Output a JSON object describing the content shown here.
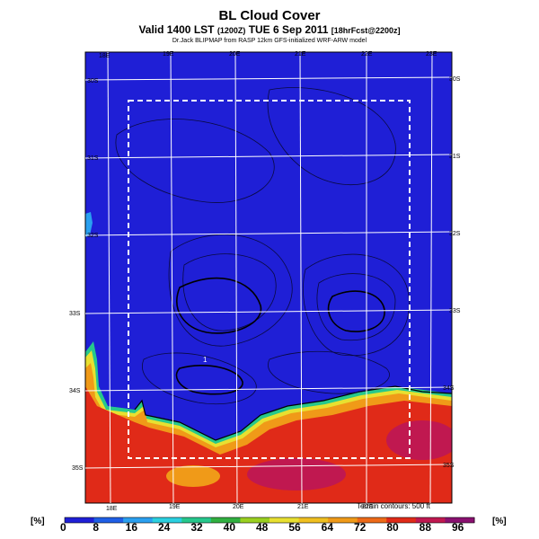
{
  "header": {
    "title": "BL Cloud Cover",
    "subtitle_main": "Valid 1400 LST",
    "subtitle_utc": "(1200Z)",
    "subtitle_date": "TUE 6 Sep 2011",
    "subtitle_fcst": "[18hrFcst@2200z]",
    "credit": "Dr.Jack BLIPMAP from RASP 12km GFS-initialized WRF-ARW model"
  },
  "map": {
    "lon_ticks_top": [
      "18E",
      "19E",
      "20E",
      "21E",
      "22E",
      "23E"
    ],
    "lon_ticks_bottom": [
      "18E",
      "19E",
      "20E",
      "21E",
      "22E"
    ],
    "lat_ticks_left": [
      "30S",
      "31S",
      "32S",
      "33S",
      "34S",
      "35S"
    ],
    "lat_ticks_right": [
      "30S",
      "31S",
      "32S",
      "33S",
      "34S",
      "35S"
    ],
    "point_marker": "1",
    "terrain_note": "Terrain contours: 500 ft"
  },
  "colorbar": {
    "unit_left": "[%]",
    "unit_right": "[%]",
    "labels": [
      "0",
      "8",
      "16",
      "24",
      "32",
      "40",
      "48",
      "56",
      "64",
      "72",
      "80",
      "88",
      "96"
    ],
    "colors": [
      "#1f1fd6",
      "#1f5fe6",
      "#2aa0f0",
      "#2ad0e0",
      "#26c88c",
      "#30b040",
      "#9ad020",
      "#e8e030",
      "#f0c020",
      "#f09a18",
      "#ee6a18",
      "#e02a18",
      "#c01850",
      "#8a1070"
    ]
  }
}
